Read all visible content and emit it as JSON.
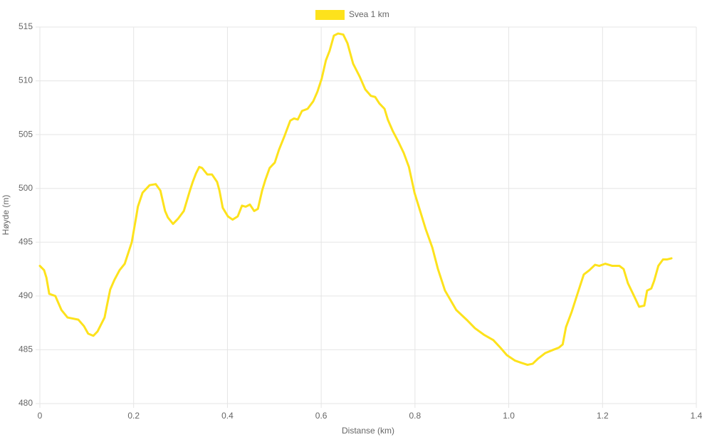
{
  "chart_data": {
    "type": "line",
    "x_label": "Distanse (km)",
    "y_label": "Høyde (m)",
    "x": [
      0,
      0.009,
      0.014,
      0.02,
      0.033,
      0.046,
      0.059,
      0.082,
      0.094,
      0.103,
      0.114,
      0.123,
      0.131,
      0.138,
      0.143,
      0.15,
      0.159,
      0.17,
      0.181,
      0.196,
      0.206,
      0.209,
      0.219,
      0.234,
      0.247,
      0.257,
      0.267,
      0.273,
      0.284,
      0.295,
      0.307,
      0.32,
      0.326,
      0.333,
      0.34,
      0.346,
      0.357,
      0.367,
      0.378,
      0.383,
      0.39,
      0.401,
      0.411,
      0.422,
      0.431,
      0.439,
      0.448,
      0.457,
      0.465,
      0.474,
      0.481,
      0.49,
      0.501,
      0.51,
      0.522,
      0.534,
      0.542,
      0.55,
      0.559,
      0.571,
      0.583,
      0.592,
      0.601,
      0.61,
      0.618,
      0.627,
      0.636,
      0.647,
      0.656,
      0.668,
      0.682,
      0.694,
      0.706,
      0.715,
      0.724,
      0.735,
      0.742,
      0.753,
      0.765,
      0.776,
      0.787,
      0.799,
      0.811,
      0.823,
      0.837,
      0.849,
      0.864,
      0.876,
      0.888,
      0.91,
      0.928,
      0.947,
      0.967,
      0.982,
      0.996,
      1.013,
      1.026,
      1.04,
      1.051,
      1.063,
      1.078,
      1.095,
      1.107,
      1.115,
      1.122,
      1.134,
      1.148,
      1.16,
      1.172,
      1.184,
      1.193,
      1.206,
      1.221,
      1.236,
      1.245,
      1.254,
      1.265,
      1.278,
      1.289,
      1.295,
      1.304,
      1.31,
      1.319,
      1.329,
      1.338,
      1.347
    ],
    "series": [
      {
        "name": "Svea 1 km",
        "color": "#fde21c",
        "values": [
          492.8,
          492.4,
          491.7,
          490.2,
          490.0,
          488.7,
          488.0,
          487.8,
          487.2,
          486.5,
          486.3,
          486.7,
          487.4,
          488.0,
          489.1,
          490.6,
          491.5,
          492.4,
          493.0,
          495.0,
          497.5,
          498.3,
          499.6,
          500.3,
          500.4,
          499.8,
          497.9,
          497.3,
          496.7,
          497.2,
          497.9,
          499.8,
          500.6,
          501.4,
          502.0,
          501.9,
          501.3,
          501.3,
          500.6,
          499.8,
          498.2,
          497.4,
          497.1,
          497.4,
          498.4,
          498.3,
          498.5,
          497.9,
          498.1,
          499.8,
          500.8,
          501.9,
          502.4,
          503.6,
          504.9,
          506.3,
          506.5,
          506.4,
          507.2,
          507.4,
          508.1,
          509.0,
          510.2,
          511.9,
          512.8,
          514.2,
          514.4,
          514.3,
          513.5,
          511.6,
          510.4,
          509.2,
          508.6,
          508.5,
          507.9,
          507.4,
          506.4,
          505.3,
          504.3,
          503.3,
          502.0,
          499.6,
          497.9,
          496.2,
          494.5,
          492.5,
          490.5,
          489.6,
          488.7,
          487.8,
          487.0,
          486.4,
          485.9,
          485.2,
          484.5,
          484.0,
          483.8,
          483.6,
          483.7,
          484.2,
          484.7,
          485.0,
          485.2,
          485.5,
          487.1,
          488.5,
          490.4,
          492.0,
          492.4,
          492.9,
          492.8,
          493.0,
          492.8,
          492.8,
          492.5,
          491.2,
          490.2,
          489.0,
          489.1,
          490.5,
          490.7,
          491.4,
          492.8,
          493.4,
          493.4,
          493.5
        ]
      }
    ],
    "xlim": [
      0,
      1.4
    ],
    "xticks": [
      0,
      0.2,
      0.4,
      0.6,
      0.8,
      {
        "value": 1,
        "label": "1.0"
      },
      1.2,
      1.4
    ],
    "ylim": [
      480,
      515
    ],
    "yticks": [
      480,
      485,
      490,
      495,
      500,
      505,
      510,
      515
    ],
    "grid": true
  }
}
